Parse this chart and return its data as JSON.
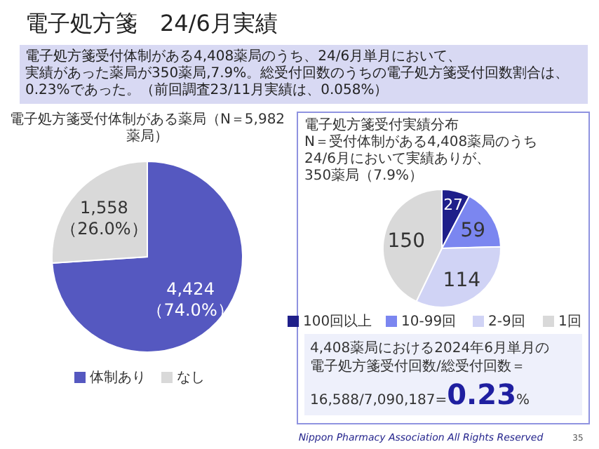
{
  "chart_data": [
    {
      "type": "pie",
      "title": "電子処方箋　24/6月実績",
      "subtitle": "電子処方箋受付体制がある4,408薬局のうち、24/6月単月において、実績があった薬局が350薬局,7.9%。総受付回数のうちの電子処方箋受付回数割合は、0.23%であった。（前回調査23/11月実績は、0.058%）",
      "annotations": [
        "電子処方箋受付体制がある薬局（N＝5,982薬局）"
      ],
      "categories": [
        "体制あり",
        "なし"
      ],
      "values": [
        4424,
        1558
      ],
      "colors": [
        "#5558c0",
        "#d9d9d9"
      ],
      "value_labels": [
        "4,424\n（74.0%）",
        "1,558\n（26.0%）"
      ],
      "legend": "bottom"
    },
    {
      "type": "pie",
      "title": "電子処方箋受付実績分布",
      "subtitle": "N＝受付体制がある4,408薬局のうち\n24/6月において実績ありが、350薬局（7.9%）",
      "annotations": [
        "4,408薬局における2024年6月単月の",
        "電子処方箋受付回数/総受付回数＝",
        "16,588/7,090,187=",
        "0.23",
        "%",
        "Nippon Pharmacy Association All Rights Reserved",
        "35"
      ],
      "categories": [
        "100回以上",
        "10-99回",
        "2-9回",
        "1回"
      ],
      "values": [
        27,
        59,
        114,
        150
      ],
      "colors": [
        "#1f1f8a",
        "#7b86f0",
        "#d0d3f5",
        "#d9d9d9"
      ],
      "data_labels": true,
      "legend": "bottom"
    }
  ]
}
